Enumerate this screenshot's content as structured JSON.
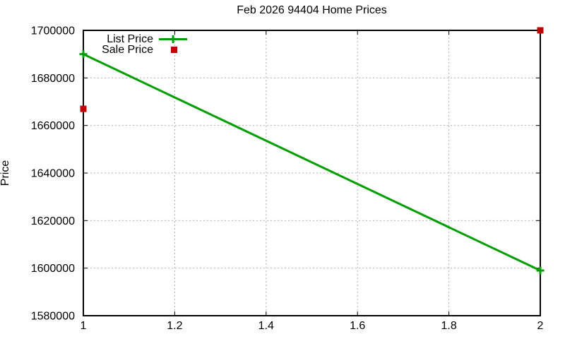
{
  "chart_data": {
    "type": "line",
    "title": "Feb 2026 94404 Home Prices",
    "xlabel": "",
    "ylabel": "Price",
    "xlim": [
      1,
      2
    ],
    "ylim": [
      1580000,
      1700000
    ],
    "x_ticks": [
      1,
      1.2,
      1.4,
      1.6,
      1.8,
      2
    ],
    "x_tick_labels": [
      "1",
      "1.2",
      "1.4",
      "1.6",
      "1.8",
      "2"
    ],
    "y_ticks": [
      1580000,
      1600000,
      1620000,
      1640000,
      1660000,
      1680000,
      1700000
    ],
    "y_tick_labels": [
      "1580000",
      "1600000",
      "1620000",
      "1640000",
      "1660000",
      "1680000",
      "1700000"
    ],
    "grid": true,
    "legend_position": "top-left-inside",
    "series": [
      {
        "name": "List Price",
        "style": "linespoints",
        "marker": "plus",
        "color": "#009e00",
        "x": [
          1,
          2
        ],
        "y": [
          1690000,
          1599000
        ]
      },
      {
        "name": "Sale Price",
        "style": "points",
        "marker": "filled-square",
        "color": "#c00000",
        "x": [
          1,
          2
        ],
        "y": [
          1667000,
          1700000
        ]
      }
    ]
  },
  "colors": {
    "background": "#ffffff",
    "axis": "#000000",
    "grid": "#b0b0b0",
    "text": "#000000"
  }
}
